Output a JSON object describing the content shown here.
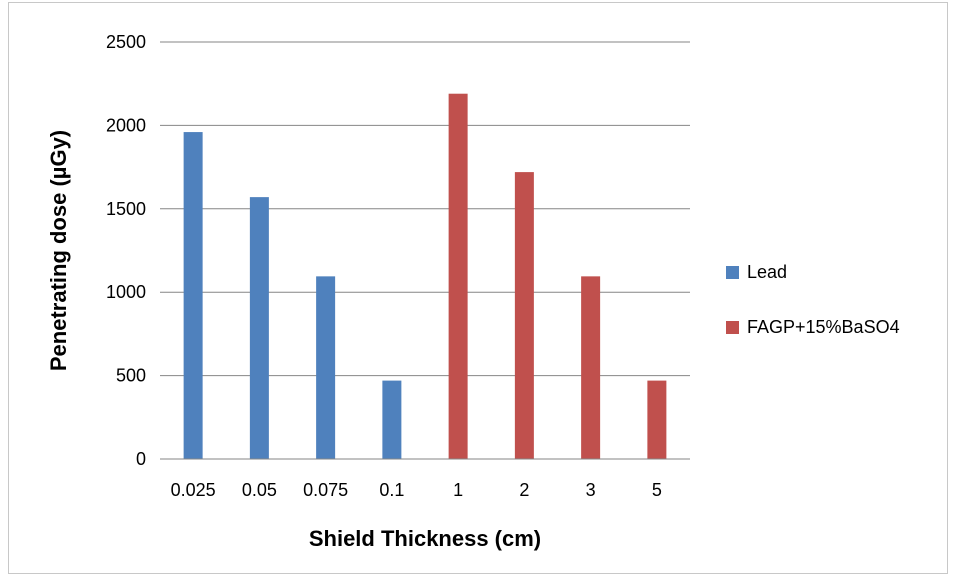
{
  "chart_data": {
    "type": "bar",
    "title": "",
    "xlabel": "Shield Thickness (cm)",
    "ylabel": "Penetrating dose (µGy)",
    "categories": [
      "0.025",
      "0.05",
      "0.075",
      "0.1",
      "1",
      "2",
      "3",
      "5"
    ],
    "series": [
      {
        "name": "Lead",
        "color": "#4f81bd",
        "values": [
          1960,
          1570,
          1095,
          470,
          null,
          null,
          null,
          null
        ]
      },
      {
        "name": "FAGP+15%BaSO4",
        "color": "#c0504d",
        "values": [
          null,
          null,
          null,
          null,
          2190,
          1720,
          1095,
          470
        ]
      }
    ],
    "ylim": [
      0,
      2500
    ],
    "yticks": [
      0,
      500,
      1000,
      1500,
      2000,
      2500
    ],
    "grid": true,
    "legend_position": "right"
  }
}
